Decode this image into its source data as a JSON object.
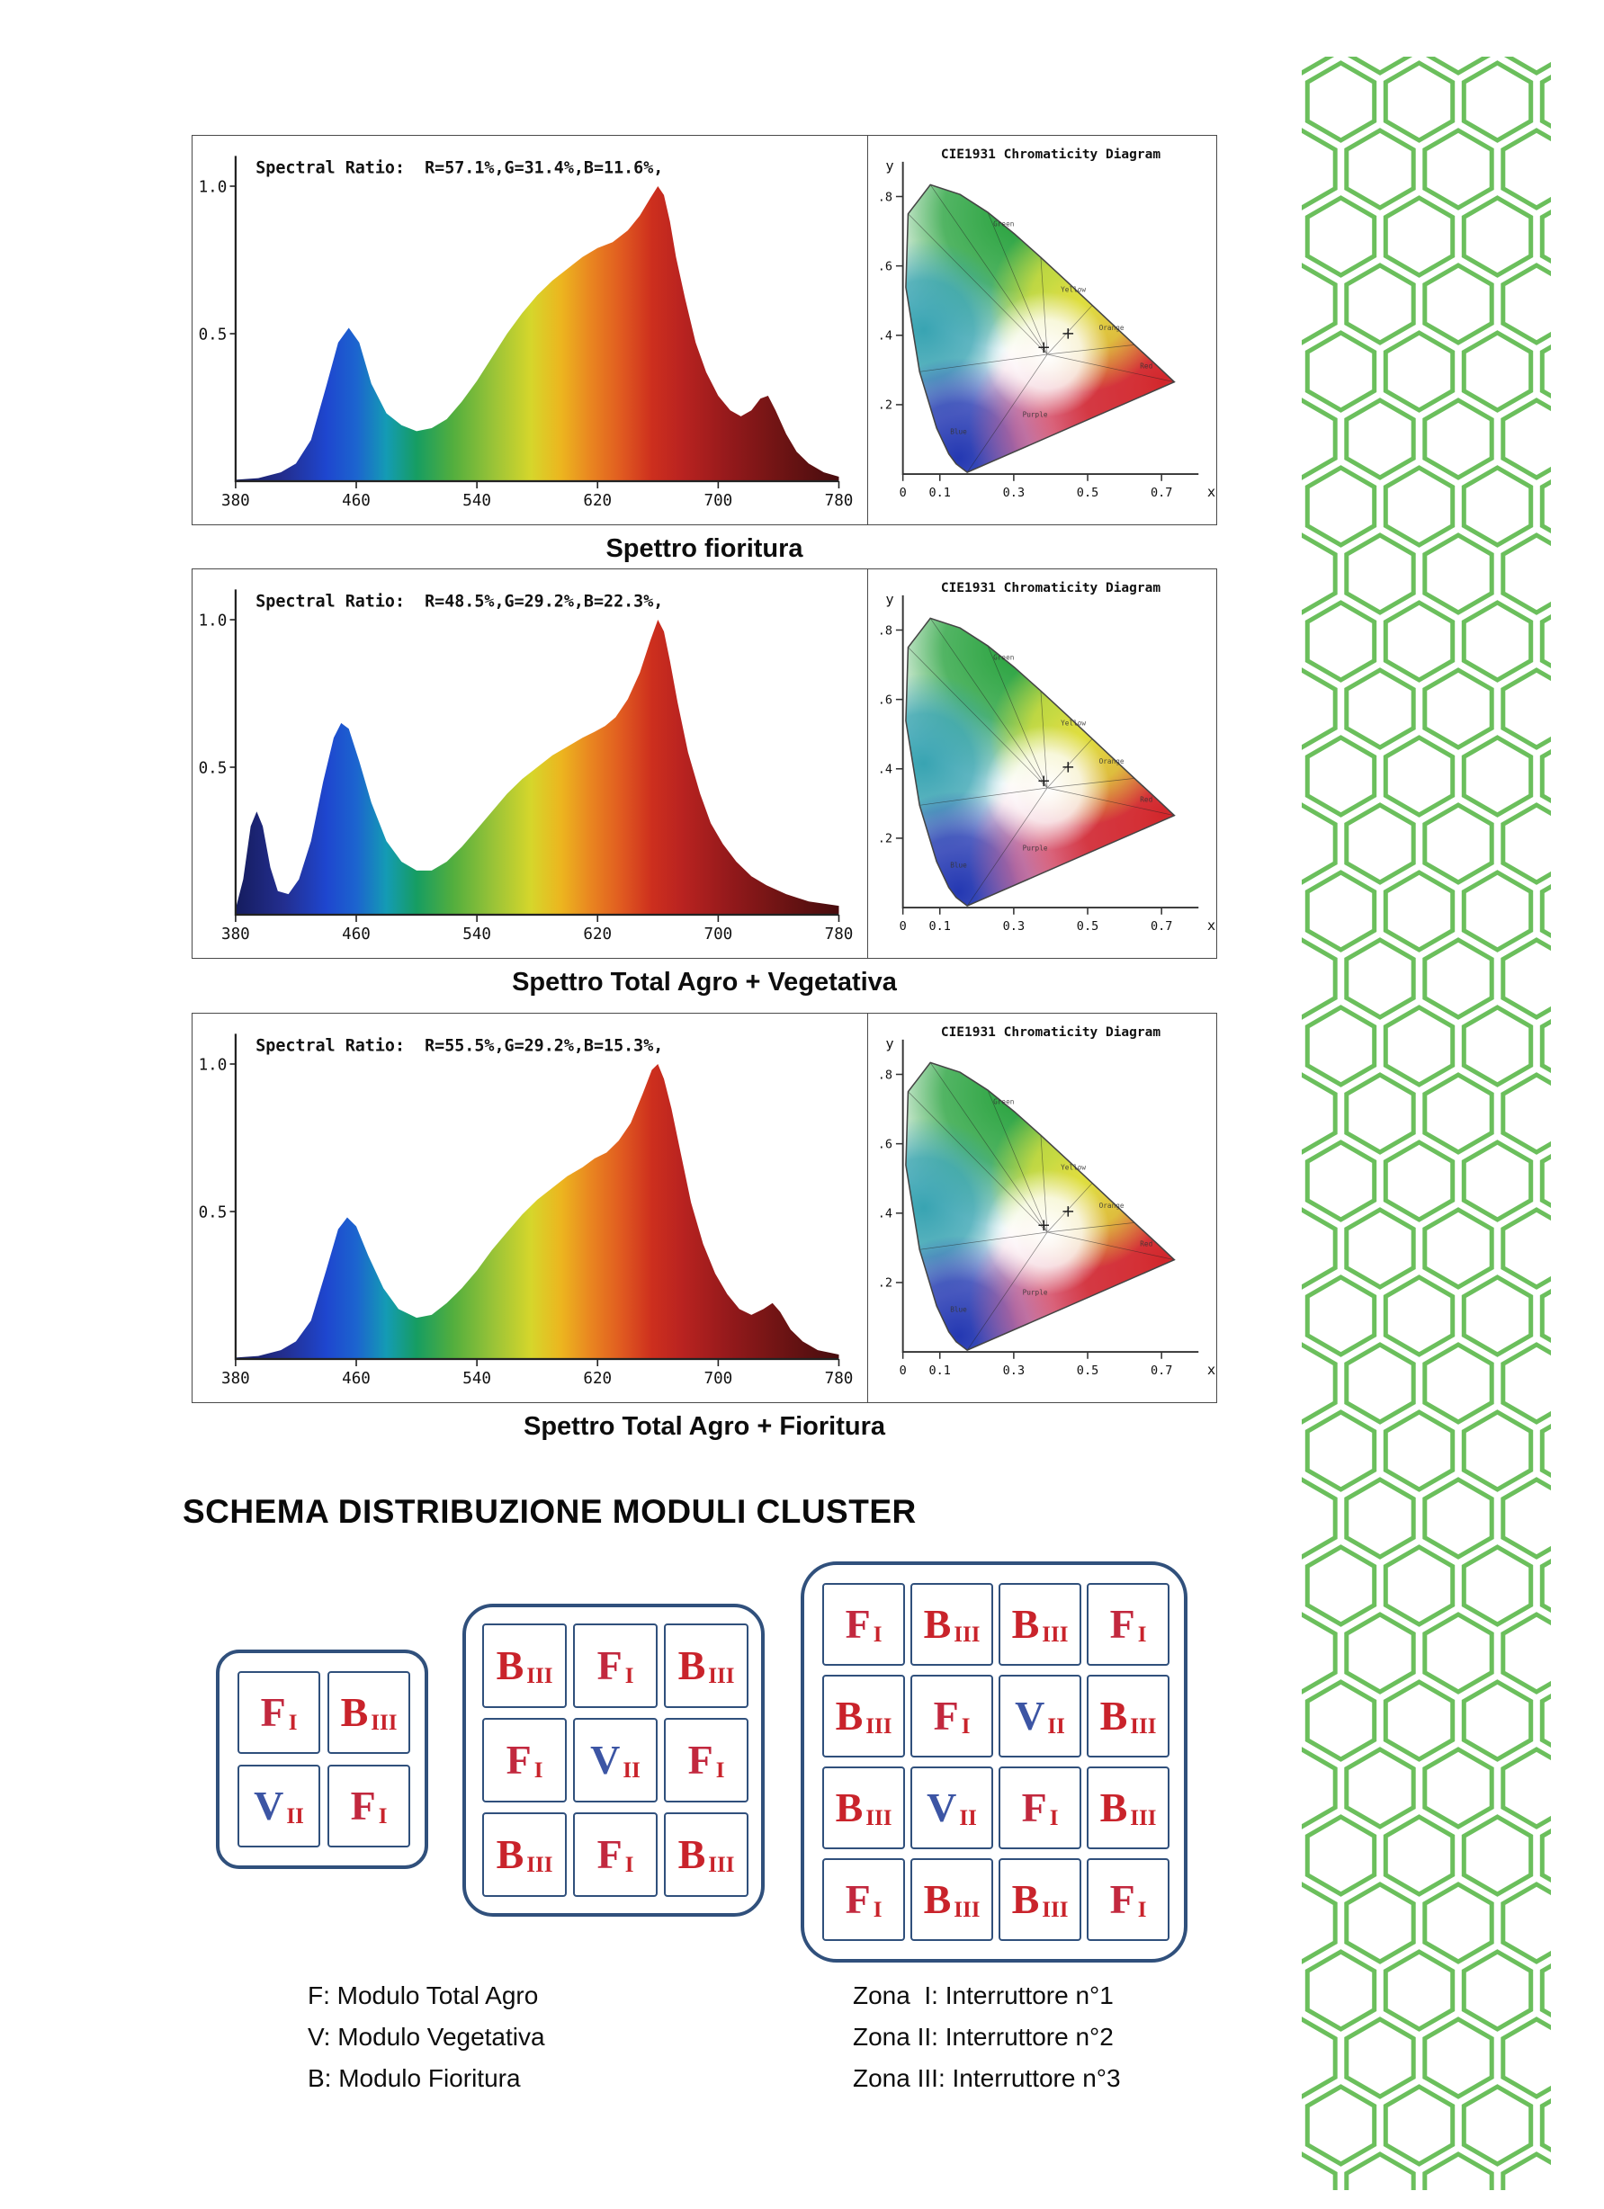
{
  "section_title": "SCHEMA DISTRIBUZIONE MODULI CLUSTER",
  "figures": [
    {
      "caption": "Spettro fioritura"
    },
    {
      "caption": "Spettro Total Agro + Vegetativa"
    },
    {
      "caption": "Spettro Total Agro + Fioritura"
    }
  ],
  "spectrum_axis": {
    "x_ticks": [
      "380",
      "460",
      "540",
      "620",
      "700",
      "780"
    ],
    "y_ticks": [
      {
        "label": "1.0",
        "value": 1.0
      },
      {
        "label": "0.5",
        "value": 0.5
      }
    ]
  },
  "cie": {
    "title": "CIE1931 Chromaticity Diagram",
    "x_label": "x",
    "y_label": "y",
    "x_ticks": [
      {
        "label": "0",
        "value": 0
      },
      {
        "label": "0.1",
        "value": 0.1
      },
      {
        "label": "0.3",
        "value": 0.3
      },
      {
        "label": "0.5",
        "value": 0.5
      },
      {
        "label": "0.7",
        "value": 0.7
      }
    ],
    "y_ticks": [
      {
        "label": ".8",
        "value": 0.8
      },
      {
        "label": ".6",
        "value": 0.6
      },
      {
        "label": ".4",
        "value": 0.4
      },
      {
        "label": ".2",
        "value": 0.2
      }
    ],
    "region_labels": [
      "Green",
      "Yellow",
      "Orange",
      "Red",
      "Purple",
      "Blue"
    ]
  },
  "chart_data": [
    {
      "type": "area",
      "title": "Spettro fioritura",
      "spectral_ratio_label": "Spectral Ratio:  R=57.1%,G=31.4%,B=11.6%,",
      "spectral_ratio": {
        "R_pct": 57.1,
        "G_pct": 31.4,
        "B_pct": 11.6
      },
      "xlim": [
        380,
        780
      ],
      "ylim": [
        0,
        1.0
      ],
      "points": [
        [
          380,
          0.005
        ],
        [
          395,
          0.01
        ],
        [
          410,
          0.03
        ],
        [
          420,
          0.06
        ],
        [
          430,
          0.14
        ],
        [
          440,
          0.32
        ],
        [
          448,
          0.47
        ],
        [
          455,
          0.52
        ],
        [
          462,
          0.47
        ],
        [
          470,
          0.33
        ],
        [
          480,
          0.23
        ],
        [
          490,
          0.19
        ],
        [
          500,
          0.17
        ],
        [
          510,
          0.18
        ],
        [
          520,
          0.21
        ],
        [
          530,
          0.27
        ],
        [
          540,
          0.34
        ],
        [
          550,
          0.42
        ],
        [
          560,
          0.5
        ],
        [
          570,
          0.57
        ],
        [
          580,
          0.63
        ],
        [
          590,
          0.68
        ],
        [
          600,
          0.72
        ],
        [
          610,
          0.76
        ],
        [
          620,
          0.79
        ],
        [
          630,
          0.81
        ],
        [
          640,
          0.85
        ],
        [
          648,
          0.9
        ],
        [
          655,
          0.96
        ],
        [
          660,
          1.0
        ],
        [
          664,
          0.97
        ],
        [
          668,
          0.88
        ],
        [
          672,
          0.76
        ],
        [
          678,
          0.62
        ],
        [
          685,
          0.47
        ],
        [
          692,
          0.37
        ],
        [
          700,
          0.29
        ],
        [
          708,
          0.24
        ],
        [
          715,
          0.22
        ],
        [
          722,
          0.24
        ],
        [
          728,
          0.28
        ],
        [
          733,
          0.29
        ],
        [
          738,
          0.24
        ],
        [
          745,
          0.16
        ],
        [
          752,
          0.1
        ],
        [
          760,
          0.06
        ],
        [
          770,
          0.03
        ],
        [
          780,
          0.015
        ]
      ]
    },
    {
      "type": "area",
      "title": "Spettro Total Agro + Vegetativa",
      "spectral_ratio_label": "Spectral Ratio:  R=48.5%,G=29.2%,B=22.3%,",
      "spectral_ratio": {
        "R_pct": 48.5,
        "G_pct": 29.2,
        "B_pct": 22.3
      },
      "xlim": [
        380,
        780
      ],
      "ylim": [
        0,
        1.0
      ],
      "points": [
        [
          380,
          0.02
        ],
        [
          385,
          0.12
        ],
        [
          390,
          0.3
        ],
        [
          394,
          0.35
        ],
        [
          398,
          0.3
        ],
        [
          403,
          0.16
        ],
        [
          408,
          0.08
        ],
        [
          415,
          0.07
        ],
        [
          422,
          0.12
        ],
        [
          430,
          0.25
        ],
        [
          438,
          0.45
        ],
        [
          445,
          0.6
        ],
        [
          450,
          0.65
        ],
        [
          455,
          0.63
        ],
        [
          462,
          0.52
        ],
        [
          470,
          0.38
        ],
        [
          480,
          0.25
        ],
        [
          490,
          0.18
        ],
        [
          500,
          0.15
        ],
        [
          510,
          0.15
        ],
        [
          520,
          0.18
        ],
        [
          530,
          0.23
        ],
        [
          540,
          0.29
        ],
        [
          550,
          0.35
        ],
        [
          560,
          0.41
        ],
        [
          570,
          0.46
        ],
        [
          580,
          0.5
        ],
        [
          590,
          0.54
        ],
        [
          600,
          0.57
        ],
        [
          610,
          0.6
        ],
        [
          618,
          0.62
        ],
        [
          625,
          0.64
        ],
        [
          632,
          0.67
        ],
        [
          640,
          0.73
        ],
        [
          648,
          0.82
        ],
        [
          655,
          0.93
        ],
        [
          660,
          1.0
        ],
        [
          664,
          0.96
        ],
        [
          668,
          0.86
        ],
        [
          673,
          0.72
        ],
        [
          680,
          0.55
        ],
        [
          688,
          0.41
        ],
        [
          695,
          0.31
        ],
        [
          703,
          0.24
        ],
        [
          712,
          0.18
        ],
        [
          722,
          0.13
        ],
        [
          732,
          0.1
        ],
        [
          745,
          0.07
        ],
        [
          760,
          0.045
        ],
        [
          780,
          0.03
        ]
      ]
    },
    {
      "type": "area",
      "title": "Spettro Total Agro + Fioritura",
      "spectral_ratio_label": "Spectral Ratio:  R=55.5%,G=29.2%,B=15.3%,",
      "spectral_ratio": {
        "R_pct": 55.5,
        "G_pct": 29.2,
        "B_pct": 15.3
      },
      "xlim": [
        380,
        780
      ],
      "ylim": [
        0,
        1.0
      ],
      "points": [
        [
          380,
          0.005
        ],
        [
          395,
          0.01
        ],
        [
          410,
          0.03
        ],
        [
          420,
          0.06
        ],
        [
          430,
          0.13
        ],
        [
          440,
          0.3
        ],
        [
          448,
          0.44
        ],
        [
          454,
          0.48
        ],
        [
          460,
          0.45
        ],
        [
          468,
          0.35
        ],
        [
          478,
          0.24
        ],
        [
          488,
          0.17
        ],
        [
          500,
          0.14
        ],
        [
          510,
          0.15
        ],
        [
          520,
          0.19
        ],
        [
          530,
          0.24
        ],
        [
          540,
          0.3
        ],
        [
          550,
          0.37
        ],
        [
          560,
          0.43
        ],
        [
          570,
          0.49
        ],
        [
          580,
          0.54
        ],
        [
          590,
          0.58
        ],
        [
          600,
          0.62
        ],
        [
          610,
          0.65
        ],
        [
          618,
          0.68
        ],
        [
          626,
          0.7
        ],
        [
          634,
          0.74
        ],
        [
          642,
          0.8
        ],
        [
          650,
          0.9
        ],
        [
          656,
          0.98
        ],
        [
          660,
          1.0
        ],
        [
          664,
          0.95
        ],
        [
          669,
          0.85
        ],
        [
          675,
          0.7
        ],
        [
          682,
          0.53
        ],
        [
          690,
          0.39
        ],
        [
          698,
          0.29
        ],
        [
          706,
          0.22
        ],
        [
          714,
          0.17
        ],
        [
          722,
          0.15
        ],
        [
          730,
          0.17
        ],
        [
          736,
          0.19
        ],
        [
          741,
          0.16
        ],
        [
          748,
          0.1
        ],
        [
          756,
          0.06
        ],
        [
          766,
          0.03
        ],
        [
          780,
          0.015
        ]
      ]
    }
  ],
  "clusters": [
    {
      "cols": 2,
      "cells": [
        [
          "F",
          "I"
        ],
        [
          "B",
          "III"
        ],
        [
          "V",
          "II"
        ],
        [
          "F",
          "I"
        ]
      ]
    },
    {
      "cols": 3,
      "cells": [
        [
          "B",
          "III"
        ],
        [
          "F",
          "I"
        ],
        [
          "B",
          "III"
        ],
        [
          "F",
          "I"
        ],
        [
          "V",
          "II"
        ],
        [
          "F",
          "I"
        ],
        [
          "B",
          "III"
        ],
        [
          "F",
          "I"
        ],
        [
          "B",
          "III"
        ]
      ]
    },
    {
      "cols": 4,
      "cells": [
        [
          "F",
          "I"
        ],
        [
          "B",
          "III"
        ],
        [
          "B",
          "III"
        ],
        [
          "F",
          "I"
        ],
        [
          "B",
          "III"
        ],
        [
          "F",
          "I"
        ],
        [
          "V",
          "II"
        ],
        [
          "B",
          "III"
        ],
        [
          "B",
          "III"
        ],
        [
          "V",
          "II"
        ],
        [
          "F",
          "I"
        ],
        [
          "B",
          "III"
        ],
        [
          "F",
          "I"
        ],
        [
          "B",
          "III"
        ],
        [
          "B",
          "III"
        ],
        [
          "F",
          "I"
        ]
      ]
    }
  ],
  "module_colors": {
    "F": "#c2283e",
    "B": "#c9232b",
    "V": "#3c55a4",
    "subscript": "#c9232b"
  },
  "legend": {
    "modules": [
      "F: Modulo Total Agro",
      "V: Modulo Vegetativa",
      "B: Modulo Fioritura"
    ],
    "zones": [
      "Zona  I: Interruttore n°1",
      "Zona II: Interruttore n°2",
      "Zona III: Interruttore n°3"
    ]
  },
  "decor": {
    "hex_color": "#6bbf5c",
    "cluster_border": "#30507c"
  }
}
